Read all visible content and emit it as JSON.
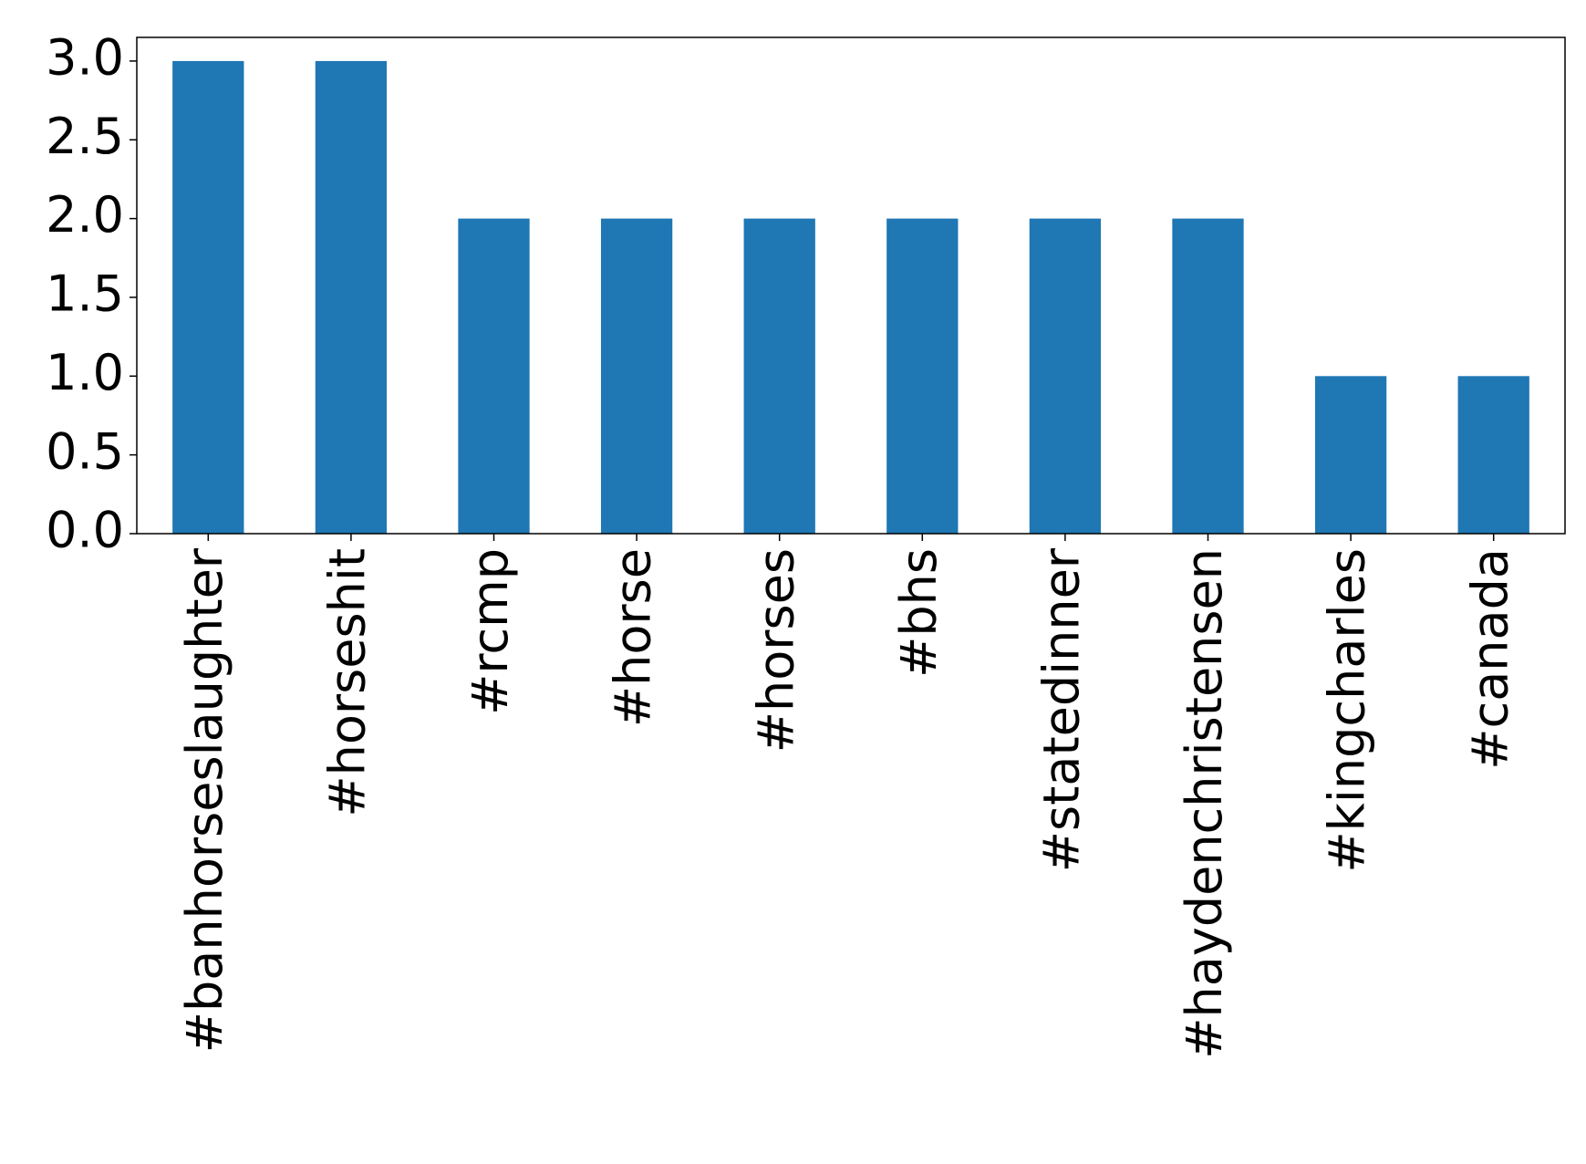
{
  "chart_data": {
    "type": "bar",
    "categories": [
      "#banhorseslaughter",
      "#horseshit",
      "#rcmp",
      "#horse",
      "#horses",
      "#bhs",
      "#statedinner",
      "#haydenchristensen",
      "#kingcharles",
      "#canada"
    ],
    "values": [
      3,
      3,
      2,
      2,
      2,
      2,
      2,
      2,
      1,
      1
    ],
    "color": "#1f77b4",
    "ylim": [
      0,
      3.15
    ],
    "yticks": [
      {
        "value": 0,
        "label": "0.0"
      },
      0.5,
      {
        "value": 1,
        "label": "1.0"
      },
      1.5,
      {
        "value": 2,
        "label": "2.0"
      },
      2.5,
      {
        "value": 3,
        "label": "3.0"
      }
    ],
    "grid": false
  }
}
